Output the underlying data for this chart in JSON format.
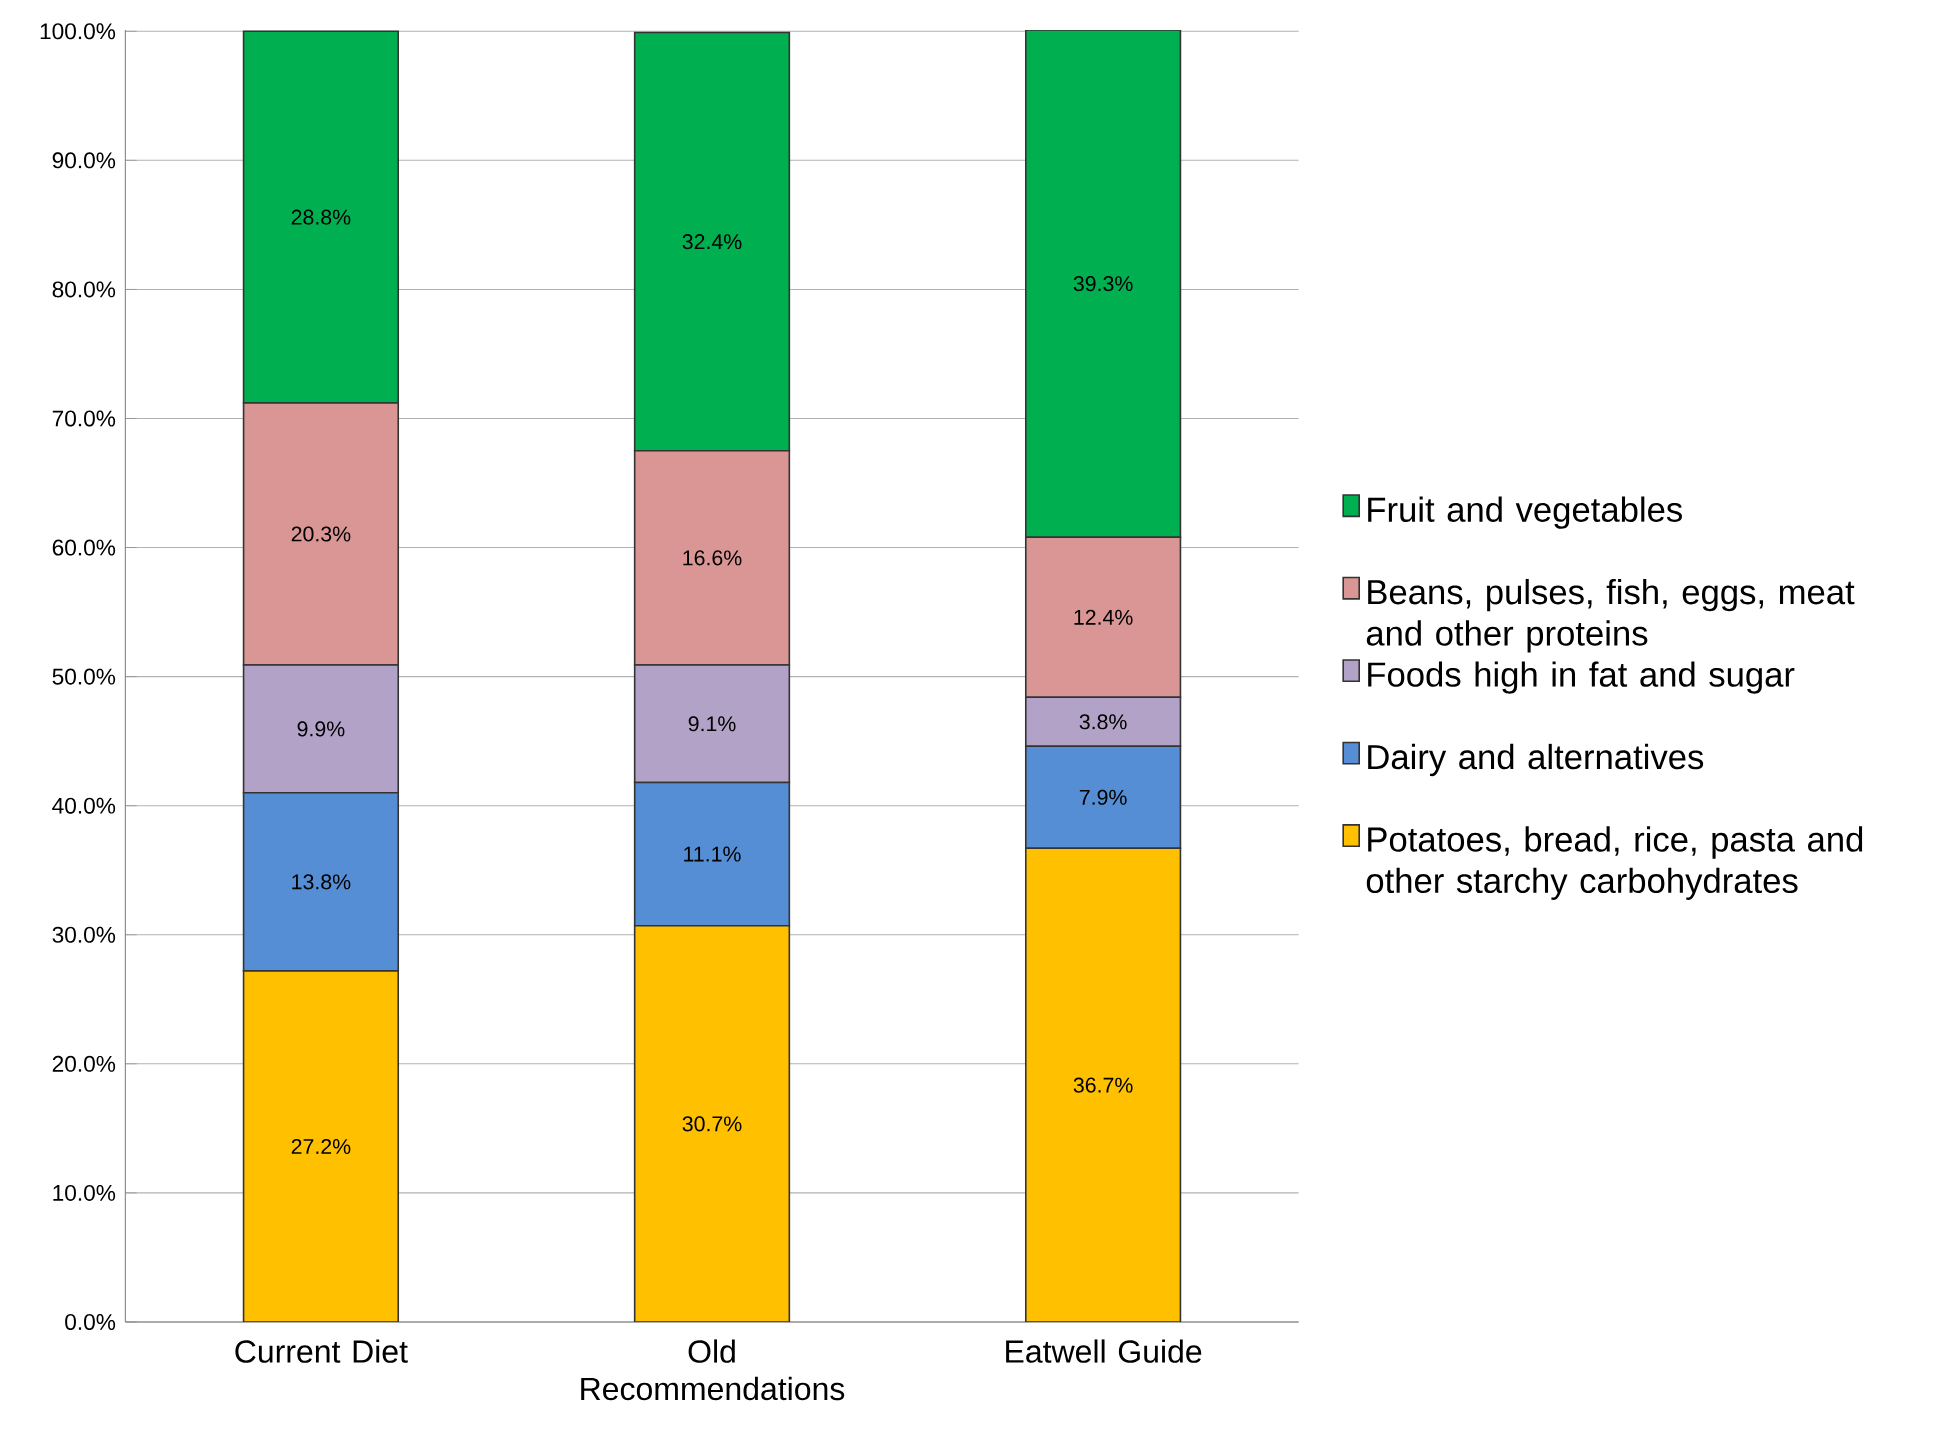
{
  "chart_data": {
    "type": "bar",
    "stacked": true,
    "categories": [
      "Current Diet",
      "Old Recommendations",
      "Eatwell Guide"
    ],
    "series": [
      {
        "name": "Potatoes, bread, rice, pasta and other starchy carbohydrates",
        "color": "#ffc000",
        "values": [
          27.2,
          30.7,
          36.7
        ],
        "value_labels": [
          "27.2%",
          "30.7%",
          "36.7%"
        ]
      },
      {
        "name": "Dairy and alternatives",
        "color": "#558ed5",
        "values": [
          13.8,
          11.1,
          7.9
        ],
        "value_labels": [
          "13.8%",
          "11.1%",
          "7.9%"
        ]
      },
      {
        "name": "Foods high in fat and sugar",
        "color": "#b3a2c7",
        "values": [
          9.9,
          9.1,
          3.8
        ],
        "value_labels": [
          "9.9%",
          "9.1%",
          "3.8%"
        ]
      },
      {
        "name": "Beans, pulses, fish, eggs, meat and other proteins",
        "color": "#d99694",
        "values": [
          20.3,
          16.6,
          12.4
        ],
        "value_labels": [
          "20.3%",
          "16.6%",
          "12.4%"
        ]
      },
      {
        "name": "Fruit and vegetables",
        "color": "#00b050",
        "values": [
          28.8,
          32.4,
          39.3
        ],
        "value_labels": [
          "28.8%",
          "32.4%",
          "39.3%"
        ]
      }
    ],
    "ylim": [
      0,
      100.1
    ],
    "yticks": [
      {
        "value": 0,
        "label": "0.0%"
      },
      {
        "value": 10,
        "label": "10.0%"
      },
      {
        "value": 20,
        "label": "20.0%"
      },
      {
        "value": 30,
        "label": "30.0%"
      },
      {
        "value": 40,
        "label": "40.0%"
      },
      {
        "value": 50,
        "label": "50.0%"
      },
      {
        "value": 60,
        "label": "60.0%"
      },
      {
        "value": 70,
        "label": "70.0%"
      },
      {
        "value": 80,
        "label": "80.0%"
      },
      {
        "value": 90,
        "label": "90.0%"
      },
      {
        "value": 100,
        "label": "100.0%"
      }
    ],
    "grid": "y",
    "legend": "right"
  }
}
